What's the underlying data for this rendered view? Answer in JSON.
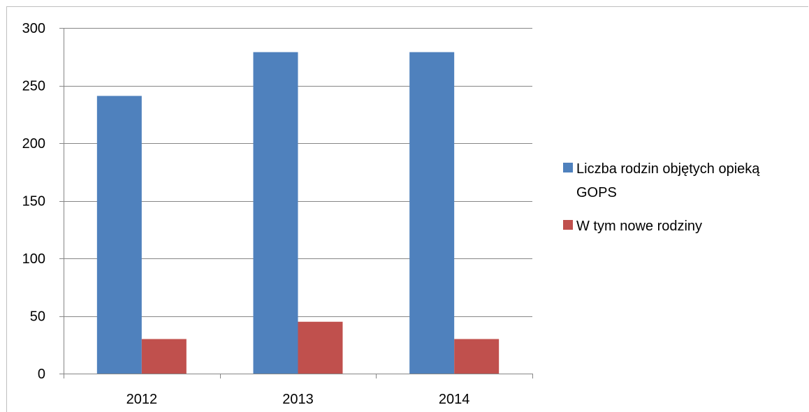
{
  "chart_data": {
    "type": "bar",
    "categories": [
      "2012",
      "2013",
      "2014"
    ],
    "series": [
      {
        "name": "Liczba rodzin objętych opieką GOPS",
        "name_lines": [
          "Liczba rodzin objętych opieką",
          "GOPS"
        ],
        "color": "#4f81bd",
        "values": [
          241,
          279,
          279
        ]
      },
      {
        "name": "W tym nowe rodziny",
        "name_lines": [
          "W tym nowe rodziny"
        ],
        "color": "#c0504d",
        "values": [
          30,
          45,
          30
        ]
      }
    ],
    "ylim": [
      0,
      300
    ],
    "yticks": [
      "0",
      "50",
      "100",
      "150",
      "200",
      "250",
      "300"
    ],
    "title": "",
    "xlabel": "",
    "ylabel": "",
    "grid": true,
    "legend_position": "right",
    "gridline_color": "#868686"
  }
}
